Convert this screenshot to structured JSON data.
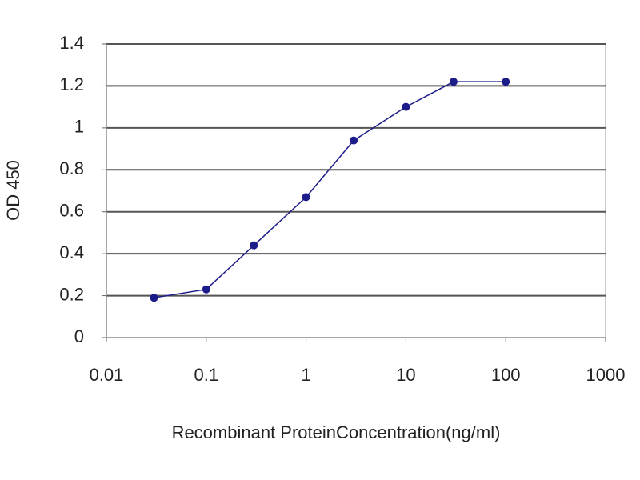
{
  "chart_data": {
    "type": "line",
    "x_label": "Recombinant ProteinConcentration(ng/ml)",
    "y_label": "OD 450",
    "x": [
      0.03,
      0.1,
      0.3,
      1,
      3,
      10,
      30,
      100
    ],
    "series": [
      {
        "color": "#1c1c8a",
        "values": [
          0.19,
          0.23,
          0.44,
          0.67,
          0.94,
          1.1,
          1.22,
          1.22
        ]
      }
    ],
    "xlim": [
      0.01,
      1000
    ],
    "xticks": [
      0.01,
      0.1,
      1,
      10,
      100,
      1000
    ],
    "x_log": true,
    "ylim": [
      0,
      1.4
    ],
    "yticks": [
      0,
      0.2,
      0.4,
      0.6,
      0.8,
      1,
      1.2,
      1.4
    ],
    "grid": true
  }
}
